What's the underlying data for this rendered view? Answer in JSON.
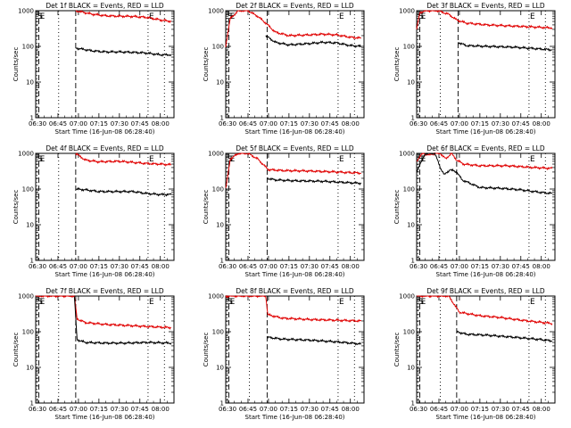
{
  "colors": {
    "events": "#000000",
    "lld": "#e00000",
    "axis": "#000000",
    "background": "#ffffff"
  },
  "chart_data": [
    {
      "type": "line",
      "title": "Det 1f BLACK = Events, RED = LLD",
      "xlabel": "Start Time (16-Jun-08 06:28:40)",
      "ylabel": "Counts/sec",
      "yscale": "log",
      "ylim": [
        1,
        1000
      ],
      "xlim": [
        "06:28:40",
        "08:10:00"
      ],
      "xticks": [
        "06:30",
        "06:45",
        "07:00",
        "07:15",
        "07:30",
        "07:45",
        "08:00"
      ],
      "yticks": [
        "1",
        "10",
        "100",
        "1000"
      ],
      "markers": [
        {
          "label": "S",
          "time": "06:29:30",
          "style": "dotted"
        },
        {
          "label": "E",
          "time": "06:31:00",
          "style": "dashed"
        },
        {
          "label": "",
          "time": "06:45:30",
          "style": "dotted"
        },
        {
          "label": "",
          "time": "06:58:00",
          "style": "dashed"
        },
        {
          "label": "E",
          "time": "07:51:00",
          "style": "dotted"
        },
        {
          "label": "",
          "time": "08:03:00",
          "style": "dotted"
        }
      ],
      "series": [
        {
          "color": "#e00000",
          "x": [
            "06:58:00",
            "07:10:00",
            "07:20:00",
            "07:30:00",
            "07:40:00",
            "07:50:00",
            "08:00:00",
            "08:08:00"
          ],
          "y": [
            1000,
            800,
            720,
            700,
            690,
            650,
            550,
            500
          ]
        },
        {
          "color": "#000000",
          "x": [
            "06:58:00",
            "07:10:00",
            "07:20:00",
            "07:30:00",
            "07:40:00",
            "07:50:00",
            "08:00:00",
            "08:08:00"
          ],
          "y": [
            90,
            75,
            70,
            70,
            68,
            65,
            58,
            58
          ]
        }
      ]
    },
    {
      "type": "line",
      "title": "Det 2f BLACK = Events, RED = LLD",
      "xlabel": "Start Time (16-Jun-08 06:28:40)",
      "ylabel": "Counts/sec",
      "yscale": "log",
      "ylim": [
        1,
        1000
      ],
      "xlim": [
        "06:28:40",
        "08:10:00"
      ],
      "xticks": [
        "06:30",
        "06:45",
        "07:00",
        "07:15",
        "07:30",
        "07:45",
        "08:00"
      ],
      "yticks": [
        "1",
        "10",
        "100",
        "1000"
      ],
      "markers": [
        {
          "label": "S",
          "time": "06:29:30",
          "style": "dotted"
        },
        {
          "label": "E",
          "time": "06:31:00",
          "style": "dashed"
        },
        {
          "label": "",
          "time": "06:46:00",
          "style": "dotted"
        },
        {
          "label": "",
          "time": "06:59:00",
          "style": "dashed"
        },
        {
          "label": "E",
          "time": "07:51:00",
          "style": "dotted"
        },
        {
          "label": "",
          "time": "08:03:00",
          "style": "dotted"
        }
      ],
      "series": [
        {
          "color": "#e00000",
          "x": [
            "06:28:40",
            "06:32:00",
            "06:38:00",
            "06:45:00",
            "06:52:00",
            "06:58:00",
            "07:05:00",
            "07:15:00",
            "07:30:00",
            "07:40:00",
            "07:50:00",
            "08:00:00",
            "08:08:00"
          ],
          "y": [
            100,
            600,
            1000,
            1000,
            700,
            450,
            250,
            200,
            210,
            220,
            210,
            180,
            170
          ]
        },
        {
          "color": "#000000",
          "x": [
            "06:58:00",
            "07:05:00",
            "07:15:00",
            "07:30:00",
            "07:40:00",
            "07:50:00",
            "08:00:00",
            "08:08:00"
          ],
          "y": [
            200,
            130,
            110,
            120,
            130,
            125,
            105,
            100
          ]
        }
      ]
    },
    {
      "type": "line",
      "title": "Det 3f BLACK = Events, RED = LLD",
      "xlabel": "Start Time (16-Jun-08 06:28:40)",
      "ylabel": "Counts/sec",
      "yscale": "log",
      "ylim": [
        1,
        1000
      ],
      "xlim": [
        "06:28:40",
        "08:10:00"
      ],
      "xticks": [
        "06:30",
        "06:45",
        "07:00",
        "07:15",
        "07:30",
        "07:45",
        "08:00"
      ],
      "yticks": [
        "1",
        "10",
        "100",
        "1000"
      ],
      "markers": [
        {
          "label": "S",
          "time": "06:29:30",
          "style": "dotted"
        },
        {
          "label": "E",
          "time": "06:31:00",
          "style": "dashed"
        },
        {
          "label": "",
          "time": "06:46:00",
          "style": "dotted"
        },
        {
          "label": "",
          "time": "06:59:00",
          "style": "dashed"
        },
        {
          "label": "E",
          "time": "07:51:00",
          "style": "dotted"
        },
        {
          "label": "",
          "time": "08:03:00",
          "style": "dotted"
        }
      ],
      "series": [
        {
          "color": "#e00000",
          "x": [
            "06:28:40",
            "06:31:00",
            "06:36:00",
            "06:44:00",
            "06:52:00",
            "06:58:00",
            "07:05:00",
            "07:20:00",
            "07:40:00",
            "08:08:00"
          ],
          "y": [
            300,
            900,
            1000,
            1000,
            800,
            550,
            450,
            400,
            370,
            330
          ]
        },
        {
          "color": "#000000",
          "x": [
            "06:59:00",
            "07:05:00",
            "07:20:00",
            "07:40:00",
            "08:08:00"
          ],
          "y": [
            130,
            105,
            100,
            95,
            80
          ]
        }
      ]
    },
    {
      "type": "line",
      "title": "Det 4f BLACK = Events, RED = LLD",
      "xlabel": "Start Time (16-Jun-08 06:28:40)",
      "ylabel": "Counts/sec",
      "yscale": "log",
      "ylim": [
        1,
        1000
      ],
      "xlim": [
        "06:28:40",
        "08:10:00"
      ],
      "xticks": [
        "06:30",
        "06:45",
        "07:00",
        "07:15",
        "07:30",
        "07:45",
        "08:00"
      ],
      "yticks": [
        "1",
        "10",
        "100",
        "1000"
      ],
      "markers": [
        {
          "label": "S",
          "time": "06:29:30",
          "style": "dotted"
        },
        {
          "label": "E",
          "time": "06:31:00",
          "style": "dashed"
        },
        {
          "label": "",
          "time": "06:45:30",
          "style": "dotted"
        },
        {
          "label": "",
          "time": "06:58:00",
          "style": "dashed"
        },
        {
          "label": "E",
          "time": "07:51:00",
          "style": "dotted"
        },
        {
          "label": "",
          "time": "08:03:00",
          "style": "dotted"
        }
      ],
      "series": [
        {
          "color": "#e00000",
          "x": [
            "06:58:00",
            "07:05:00",
            "07:15:00",
            "07:30:00",
            "07:40:00",
            "07:50:00",
            "08:00:00",
            "08:08:00"
          ],
          "y": [
            1000,
            650,
            580,
            600,
            560,
            520,
            500,
            480
          ]
        },
        {
          "color": "#000000",
          "x": [
            "06:58:00",
            "07:05:00",
            "07:15:00",
            "07:30:00",
            "07:40:00",
            "07:50:00",
            "08:00:00",
            "08:08:00"
          ],
          "y": [
            100,
            95,
            85,
            85,
            85,
            75,
            70,
            70
          ]
        }
      ]
    },
    {
      "type": "line",
      "title": "Det 5f BLACK = Events, RED = LLD",
      "xlabel": "Start Time (16-Jun-08 06:28:40)",
      "ylabel": "Counts/sec",
      "yscale": "log",
      "ylim": [
        1,
        1000
      ],
      "xlim": [
        "06:28:40",
        "08:10:00"
      ],
      "xticks": [
        "06:30",
        "06:45",
        "07:00",
        "07:15",
        "07:30",
        "07:45",
        "08:00"
      ],
      "yticks": [
        "1",
        "10",
        "100",
        "1000"
      ],
      "markers": [
        {
          "label": "S",
          "time": "06:29:30",
          "style": "dotted"
        },
        {
          "label": "E",
          "time": "06:31:00",
          "style": "dashed"
        },
        {
          "label": "",
          "time": "06:46:00",
          "style": "dotted"
        },
        {
          "label": "",
          "time": "06:59:00",
          "style": "dashed"
        },
        {
          "label": "E",
          "time": "07:51:00",
          "style": "dotted"
        },
        {
          "label": "",
          "time": "08:03:00",
          "style": "dotted"
        }
      ],
      "series": [
        {
          "color": "#e00000",
          "x": [
            "06:28:40",
            "06:32:00",
            "06:38:00",
            "06:45:00",
            "06:52:00",
            "06:57:00",
            "07:00:00",
            "07:10:00",
            "07:30:00",
            "07:50:00",
            "08:08:00"
          ],
          "y": [
            100,
            700,
            1000,
            1000,
            700,
            450,
            350,
            330,
            320,
            300,
            280
          ]
        },
        {
          "color": "#000000",
          "x": [
            "06:59:00",
            "07:05:00",
            "07:20:00",
            "07:40:00",
            "08:00:00",
            "08:08:00"
          ],
          "y": [
            200,
            180,
            170,
            165,
            150,
            145
          ]
        }
      ]
    },
    {
      "type": "line",
      "title": "Det 6f BLACK = Events, RED = LLD",
      "xlabel": "Start Time (16-Jun-08 06:28:40)",
      "ylabel": "Counts/sec",
      "yscale": "log",
      "ylim": [
        1,
        1000
      ],
      "xlim": [
        "06:28:40",
        "08:10:00"
      ],
      "xticks": [
        "06:30",
        "06:45",
        "07:00",
        "07:15",
        "07:30",
        "07:45",
        "08:00"
      ],
      "yticks": [
        "1",
        "10",
        "100",
        "1000"
      ],
      "markers": [
        {
          "label": "S",
          "time": "06:29:30",
          "style": "dotted"
        },
        {
          "label": "E",
          "time": "06:31:00",
          "style": "dashed"
        },
        {
          "label": "",
          "time": "06:45:30",
          "style": "dotted"
        },
        {
          "label": "",
          "time": "06:58:00",
          "style": "dashed"
        },
        {
          "label": "E",
          "time": "07:51:00",
          "style": "dotted"
        },
        {
          "label": "",
          "time": "08:03:00",
          "style": "dotted"
        }
      ],
      "series": [
        {
          "color": "#e00000",
          "x": [
            "06:28:40",
            "06:33:00",
            "06:38:00",
            "06:42:00",
            "06:46:00",
            "06:50:00",
            "06:54:00",
            "06:58:00",
            "07:03:00",
            "07:15:00",
            "07:35:00",
            "07:55:00",
            "08:08:00"
          ],
          "y": [
            600,
            1000,
            900,
            1000,
            1000,
            700,
            1000,
            650,
            500,
            450,
            450,
            400,
            380
          ]
        },
        {
          "color": "#000000",
          "x": [
            "06:28:40",
            "06:35:00",
            "06:42:00",
            "06:46:00",
            "06:49:00",
            "06:53:00",
            "06:58:00",
            "07:02:00",
            "07:15:00",
            "07:30:00",
            "07:45:00",
            "08:00:00",
            "08:08:00"
          ],
          "y": [
            300,
            1000,
            1000,
            400,
            250,
            350,
            300,
            180,
            110,
            105,
            95,
            80,
            75
          ]
        }
      ]
    },
    {
      "type": "line",
      "title": "Det 7f BLACK = Events, RED = LLD",
      "xlabel": "Start Time (16-Jun-08 06:28:40)",
      "ylabel": "Counts/sec",
      "yscale": "log",
      "ylim": [
        1,
        1000
      ],
      "xlim": [
        "06:28:40",
        "08:10:00"
      ],
      "xticks": [
        "06:30",
        "06:45",
        "07:00",
        "07:15",
        "07:30",
        "07:45",
        "08:00"
      ],
      "yticks": [
        "1",
        "10",
        "100",
        "1000"
      ],
      "markers": [
        {
          "label": "S",
          "time": "06:29:30",
          "style": "dotted"
        },
        {
          "label": "E",
          "time": "06:31:00",
          "style": "dashed"
        },
        {
          "label": "",
          "time": "06:45:30",
          "style": "dotted"
        },
        {
          "label": "",
          "time": "06:58:00",
          "style": "dashed"
        },
        {
          "label": "E",
          "time": "07:51:00",
          "style": "dotted"
        },
        {
          "label": "",
          "time": "08:03:00",
          "style": "dotted"
        }
      ],
      "series": [
        {
          "color": "#e00000",
          "x": [
            "06:28:40",
            "06:30:00",
            "06:57:00",
            "06:59:00",
            "07:05:00",
            "07:20:00",
            "07:35:00",
            "07:50:00",
            "08:08:00"
          ],
          "y": [
            1000,
            1000,
            1000,
            230,
            180,
            160,
            150,
            140,
            130
          ]
        },
        {
          "color": "#000000",
          "x": [
            "06:57:00",
            "06:59:00",
            "07:05:00",
            "07:20:00",
            "07:35:00",
            "07:50:00",
            "08:08:00"
          ],
          "y": [
            1000,
            60,
            50,
            48,
            48,
            50,
            48
          ]
        }
      ]
    },
    {
      "type": "line",
      "title": "Det 8f BLACK = Events, RED = LLD",
      "xlabel": "Start Time (16-Jun-08 06:28:40)",
      "ylabel": "Counts/sec",
      "yscale": "log",
      "ylim": [
        1,
        1000
      ],
      "xlim": [
        "06:28:40",
        "08:10:00"
      ],
      "xticks": [
        "06:30",
        "06:45",
        "07:00",
        "07:15",
        "07:30",
        "07:45",
        "08:00"
      ],
      "yticks": [
        "1",
        "10",
        "100",
        "1000"
      ],
      "markers": [
        {
          "label": "S",
          "time": "06:29:30",
          "style": "dotted"
        },
        {
          "label": "E",
          "time": "06:31:00",
          "style": "dashed"
        },
        {
          "label": "",
          "time": "06:46:00",
          "style": "dotted"
        },
        {
          "label": "",
          "time": "06:59:00",
          "style": "dashed"
        },
        {
          "label": "E",
          "time": "07:51:00",
          "style": "dotted"
        },
        {
          "label": "",
          "time": "08:03:00",
          "style": "dotted"
        }
      ],
      "series": [
        {
          "color": "#e00000",
          "x": [
            "06:28:40",
            "06:30:00",
            "06:58:00",
            "06:59:30",
            "07:10:00",
            "07:30:00",
            "07:50:00",
            "08:08:00"
          ],
          "y": [
            1000,
            1000,
            1000,
            300,
            240,
            220,
            210,
            200
          ]
        },
        {
          "color": "#000000",
          "x": [
            "06:59:00",
            "07:10:00",
            "07:30:00",
            "07:50:00",
            "08:08:00"
          ],
          "y": [
            70,
            62,
            58,
            52,
            45
          ]
        }
      ]
    },
    {
      "type": "line",
      "title": "Det 9f BLACK = Events, RED = LLD",
      "xlabel": "Start Time (16-Jun-08 06:28:40)",
      "ylabel": "Counts/sec",
      "yscale": "log",
      "ylim": [
        1,
        1000
      ],
      "xlim": [
        "06:28:40",
        "08:10:00"
      ],
      "xticks": [
        "06:30",
        "06:45",
        "07:00",
        "07:15",
        "07:30",
        "07:45",
        "08:00"
      ],
      "yticks": [
        "1",
        "10",
        "100",
        "1000"
      ],
      "markers": [
        {
          "label": "S",
          "time": "06:29:30",
          "style": "dotted"
        },
        {
          "label": "E",
          "time": "06:31:00",
          "style": "dashed"
        },
        {
          "label": "",
          "time": "06:46:00",
          "style": "dotted"
        },
        {
          "label": "",
          "time": "06:58:00",
          "style": "dashed"
        },
        {
          "label": "E",
          "time": "07:51:00",
          "style": "dotted"
        },
        {
          "label": "",
          "time": "08:03:00",
          "style": "dotted"
        }
      ],
      "series": [
        {
          "color": "#e00000",
          "x": [
            "06:28:40",
            "06:30:00",
            "06:52:00",
            "06:56:00",
            "07:00:00",
            "07:15:00",
            "07:30:00",
            "07:50:00",
            "08:08:00"
          ],
          "y": [
            1000,
            1000,
            1000,
            600,
            350,
            280,
            250,
            200,
            170
          ]
        },
        {
          "color": "#000000",
          "x": [
            "06:58:00",
            "07:05:00",
            "07:20:00",
            "07:40:00",
            "08:00:00",
            "08:08:00"
          ],
          "y": [
            100,
            85,
            80,
            70,
            60,
            55
          ]
        }
      ]
    }
  ]
}
